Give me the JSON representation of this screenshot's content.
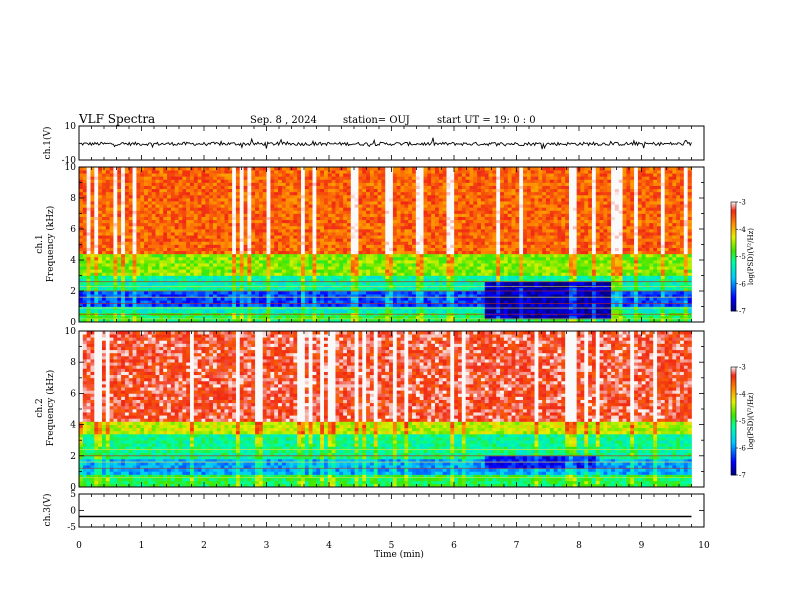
{
  "header": {
    "title": "VLF Spectra",
    "date": "Sep. 8  , 2024",
    "station": "station= OUJ",
    "start": "start  UT =   19: 0  : 0"
  },
  "chart_data": [
    {
      "type": "line",
      "panel": "ch1-waveform",
      "ylabel": "ch.1(V)",
      "yticks": [
        "10",
        "-10"
      ],
      "ylim": [
        -10,
        10
      ],
      "xlim": [
        0,
        10
      ],
      "grid": false,
      "series": [
        {
          "x": [
            0,
            9.8
          ],
          "y_mean": [
            -0.5,
            -0.5
          ],
          "y_noise_band": [
            -1.5,
            0.5
          ],
          "color": "#000000"
        }
      ]
    },
    {
      "type": "heatmap",
      "panel": "ch1-spectrogram",
      "ylabel": "ch.1\nFrequency (kHz)",
      "yticks": [
        "10",
        "8",
        "6",
        "4",
        "2",
        "0"
      ],
      "ylim": [
        0,
        10
      ],
      "xlim": [
        0,
        10
      ],
      "data_end_min": 9.8,
      "color_scale": {
        "min": -7,
        "max": -3,
        "label": "log(PSD)(V²/Hz)",
        "ticks": [
          "-3",
          "-4",
          "-5",
          "-6",
          "-7"
        ]
      },
      "bands": [
        {
          "f_from": 0,
          "f_to": 0.7,
          "logpsd": -5.0
        },
        {
          "f_from": 0.7,
          "f_to": 1.1,
          "logpsd": -5.4
        },
        {
          "f_from": 1.1,
          "f_to": 2.0,
          "logpsd": -6.3
        },
        {
          "f_from": 2.0,
          "f_to": 3.0,
          "logpsd": -5.3
        },
        {
          "f_from": 3.0,
          "f_to": 4.5,
          "logpsd": -4.6
        },
        {
          "f_from": 4.5,
          "f_to": 10,
          "logpsd": -3.6
        }
      ],
      "quiet_interval": {
        "t_from": 6.5,
        "t_to": 8.5,
        "f_from": 0.3,
        "f_to": 2.5,
        "logpsd": -6.8
      },
      "lines_khz": [
        0.2,
        0.5,
        0.9,
        1.2,
        1.6,
        2.0,
        2.3,
        2.6
      ]
    },
    {
      "type": "heatmap",
      "panel": "ch2-spectrogram",
      "ylabel": "ch.2\nFrequency (kHz)",
      "yticks": [
        "10",
        "8",
        "6",
        "4",
        "2",
        "0"
      ],
      "ylim": [
        0,
        10
      ],
      "xlim": [
        0,
        10
      ],
      "data_end_min": 9.8,
      "color_scale": {
        "min": -7,
        "max": -3,
        "label": "log(PSD)(V²/Hz)",
        "ticks": [
          "-3",
          "-4",
          "-5",
          "-6",
          "-7"
        ]
      },
      "bands": [
        {
          "f_from": 0,
          "f_to": 0.8,
          "logpsd": -5.0
        },
        {
          "f_from": 0.8,
          "f_to": 1.9,
          "logpsd": -5.9
        },
        {
          "f_from": 1.9,
          "f_to": 3.4,
          "logpsd": -5.2
        },
        {
          "f_from": 3.4,
          "f_to": 4.2,
          "logpsd": -4.4
        },
        {
          "f_from": 4.2,
          "f_to": 10,
          "logpsd": -3.3
        }
      ],
      "quiet_interval": {
        "t_from": 6.5,
        "t_to": 8.3,
        "f_from": 1.2,
        "f_to": 2.0,
        "logpsd": -6.5
      },
      "lines_khz": [
        0.6,
        1.2,
        1.6,
        2.0,
        2.4
      ]
    },
    {
      "type": "line",
      "panel": "ch3-waveform",
      "ylabel": "ch.3(V)",
      "yticks": [
        "5",
        "0",
        "-5"
      ],
      "ylim": [
        -5,
        5
      ],
      "xlim": [
        0,
        10
      ],
      "grid": false,
      "series": [
        {
          "x": [
            0,
            9.8
          ],
          "y": [
            -1.8,
            -1.8
          ],
          "color": "#000000"
        }
      ]
    }
  ],
  "xaxis": {
    "label": "Time (min)",
    "ticks": [
      "0",
      "1",
      "2",
      "3",
      "4",
      "5",
      "6",
      "7",
      "8",
      "9",
      "10"
    ]
  }
}
